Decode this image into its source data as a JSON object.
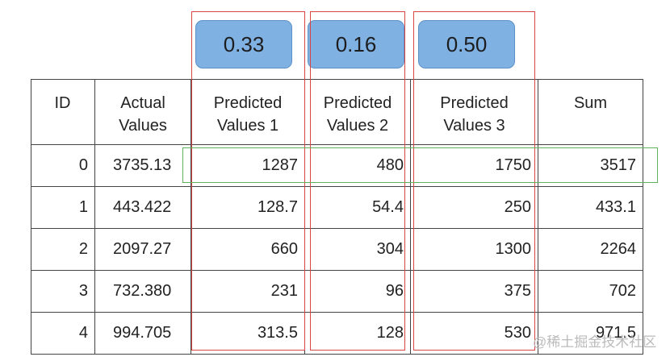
{
  "weights": [
    "0.33",
    "0.16",
    "0.50"
  ],
  "table": {
    "headers": [
      "ID",
      "Actual Values",
      "Predicted Values 1",
      "Predicted Values 2",
      "Predicted Values 3",
      "Sum"
    ],
    "rows": [
      [
        "0",
        "3735.13",
        "1287",
        "480",
        "1750",
        "3517"
      ],
      [
        "1",
        "443.422",
        "128.7",
        "54.4",
        "250",
        "433.1"
      ],
      [
        "2",
        "2097.27",
        "660",
        "304",
        "1300",
        "2264"
      ],
      [
        "3",
        "732.380",
        "231",
        "96",
        "375",
        "702"
      ],
      [
        "4",
        "994.705",
        "313.5",
        "128",
        "530",
        "971.5"
      ]
    ]
  },
  "watermark": "@稀土掘金技术社区"
}
